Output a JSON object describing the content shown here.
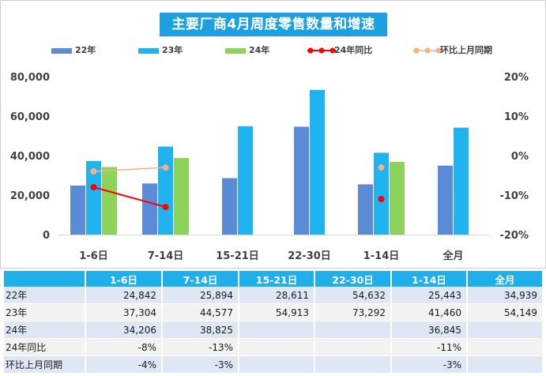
{
  "chart_data": {
    "type": "bar",
    "title": "主要厂商4月周度零售数量和增速",
    "categories": [
      "1-6日",
      "7-14日",
      "15-21日",
      "22-30日",
      "1-14日",
      "全月"
    ],
    "series": [
      {
        "name": "22年",
        "kind": "bar",
        "axis": "left",
        "color": "#5b8bd6",
        "values": [
          24842,
          25894,
          28611,
          54632,
          25443,
          34939
        ]
      },
      {
        "name": "23年",
        "kind": "bar",
        "axis": "left",
        "color": "#1fb4f0",
        "values": [
          37304,
          44577,
          54913,
          73292,
          41460,
          54149
        ]
      },
      {
        "name": "24年",
        "kind": "bar",
        "axis": "left",
        "color": "#8cd35a",
        "values": [
          34206,
          38825,
          null,
          null,
          36845,
          null
        ]
      },
      {
        "name": "24年同比",
        "kind": "line",
        "axis": "right",
        "color": "#ff0000",
        "values": [
          -0.08,
          -0.13,
          null,
          null,
          -0.11,
          null
        ]
      },
      {
        "name": "环比上月同期",
        "kind": "line",
        "axis": "right",
        "color": "#f4b183",
        "values": [
          -0.04,
          -0.03,
          null,
          null,
          -0.03,
          null
        ]
      }
    ],
    "y_left": {
      "min": 0,
      "max": 80000,
      "ticks": [
        0,
        20000,
        40000,
        60000,
        80000
      ],
      "tick_labels": [
        "0",
        "20,000",
        "40,000",
        "60,000",
        "80,000"
      ]
    },
    "y_right": {
      "min": -0.2,
      "max": 0.2,
      "ticks": [
        0.2,
        0.1,
        0,
        -0.1,
        -0.2
      ],
      "tick_labels": [
        "20%",
        "10%",
        "0%",
        "-10%",
        "-20%"
      ]
    },
    "grid": false,
    "legend": "top"
  },
  "table": {
    "headers": [
      "",
      "1-6日",
      "7-14日",
      "15-21日",
      "22-30日",
      "1-14日",
      "全月"
    ],
    "rows": [
      {
        "label": "22年",
        "cells": [
          "24,842",
          "25,894",
          "28,611",
          "54,632",
          "25,443",
          "34,939"
        ]
      },
      {
        "label": "23年",
        "cells": [
          "37,304",
          "44,577",
          "54,913",
          "73,292",
          "41,460",
          "54,149"
        ]
      },
      {
        "label": "24年",
        "cells": [
          "34,206",
          "38,825",
          "",
          "",
          "36,845",
          ""
        ]
      },
      {
        "label": "24年同比",
        "cells": [
          "-8%",
          "-13%",
          "",
          "",
          "-11%",
          ""
        ]
      },
      {
        "label": "环比上月同期",
        "cells": [
          "-4%",
          "-3%",
          "",
          "",
          "-3%",
          ""
        ]
      }
    ]
  }
}
